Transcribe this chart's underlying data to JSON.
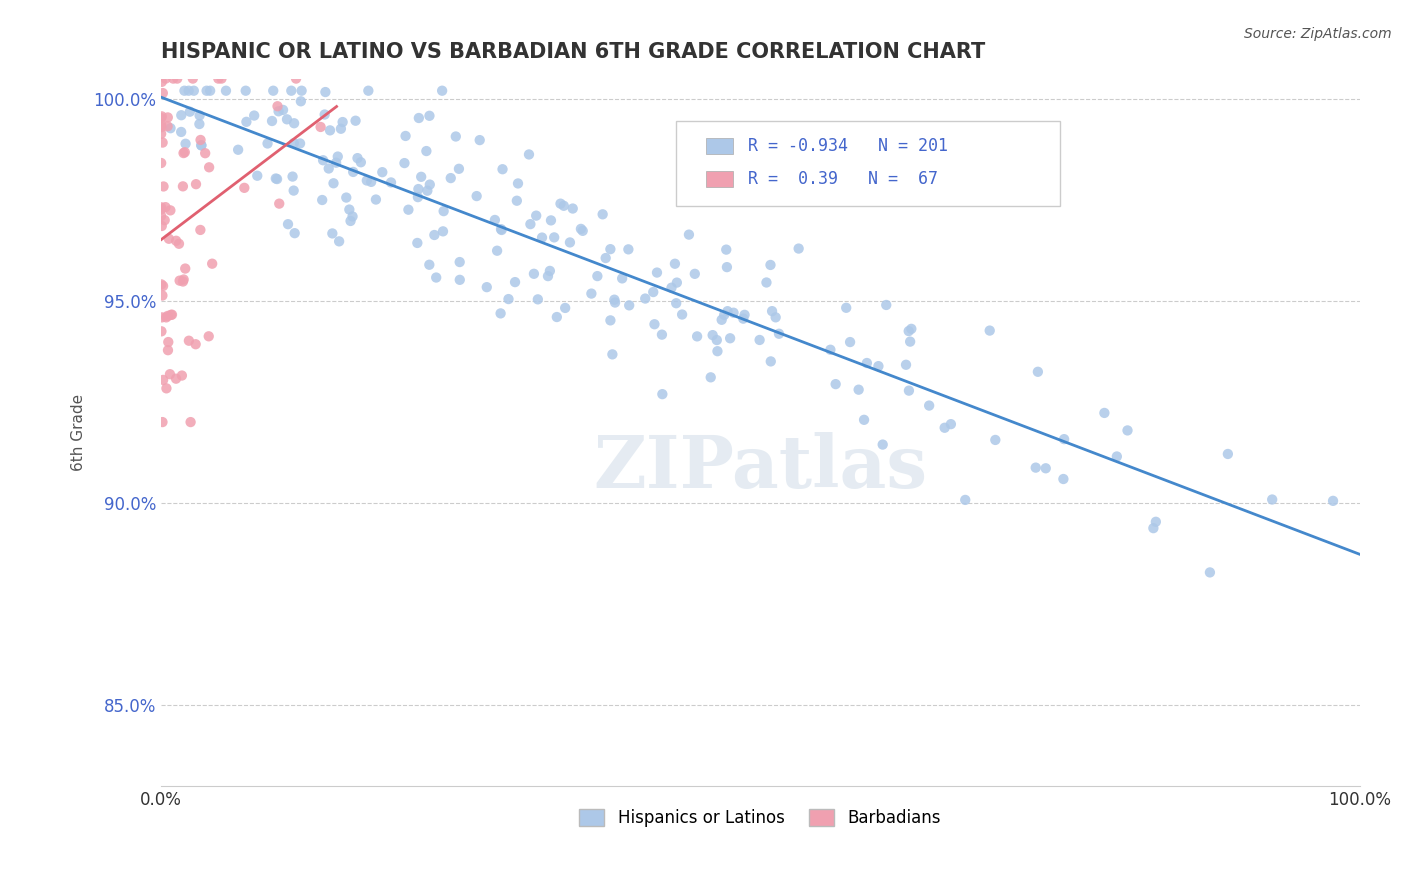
{
  "title": "HISPANIC OR LATINO VS BARBADIAN 6TH GRADE CORRELATION CHART",
  "source_text": "Source: ZipAtlas.com",
  "xlabel": "",
  "ylabel": "6th Grade",
  "x_min": 0.0,
  "x_max": 1.0,
  "y_min": 0.83,
  "y_max": 1.005,
  "x_ticks": [
    0.0,
    0.25,
    0.5,
    0.75,
    1.0
  ],
  "x_tick_labels": [
    "0.0%",
    "",
    "",
    "",
    "100.0%"
  ],
  "y_ticks": [
    0.85,
    0.9,
    0.95,
    1.0
  ],
  "y_tick_labels": [
    "85.0%",
    "90.0%",
    "95.0%",
    "100.0%"
  ],
  "blue_R": -0.934,
  "blue_N": 201,
  "pink_R": 0.39,
  "pink_N": 67,
  "blue_color": "#adc8e8",
  "pink_color": "#f0a0b0",
  "blue_line_color": "#4488cc",
  "pink_line_color": "#e06070",
  "legend_blue_label": "Hispanics or Latinos",
  "legend_pink_label": "Barbadians",
  "watermark": "ZIPatlas",
  "grid_color": "#cccccc",
  "title_color": "#333333",
  "stat_color": "#4466cc"
}
